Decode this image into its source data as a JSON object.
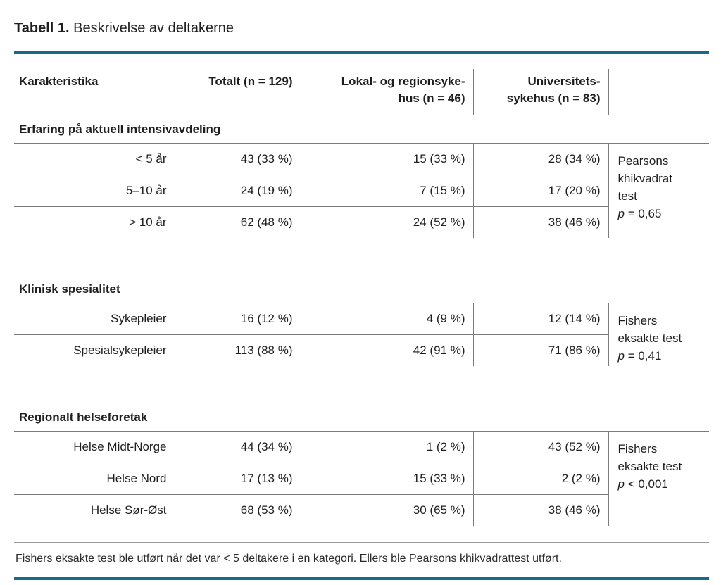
{
  "title": {
    "label": "Tabell 1.",
    "text": " Beskrivelse av deltakerne"
  },
  "colors": {
    "accent_rule": "#17698f",
    "grid_line": "#7b7b7b",
    "footnote_rule": "#9a9a9a",
    "text": "#1e1e1e"
  },
  "table": {
    "columns": [
      {
        "label": "Karakteristika"
      },
      {
        "label": "Totalt (n = 129)"
      },
      {
        "label": "Lokal- og regionsyke-\nhus (n = 46)"
      },
      {
        "label": "Universitets-\nsykehus (n = 83)"
      },
      {
        "label": ""
      }
    ],
    "sections": [
      {
        "title": "Erfaring på aktuell intensivavdeling",
        "rows": [
          [
            "< 5 år",
            "43 (33 %)",
            "15 (33 %)",
            "28 (34 %)"
          ],
          [
            "5–10 år",
            "24 (19 %)",
            "7 (15 %)",
            "17 (20 %)"
          ],
          [
            "> 10 år",
            "62 (48 %)",
            "24 (52 %)",
            "38 (46 %)"
          ]
        ],
        "stat": {
          "method": "Pearsons\nkhikvadrat\ntest",
          "p_symbol": "p",
          "p_value": " = 0,65"
        }
      },
      {
        "title": "Klinisk spesialitet",
        "rows": [
          [
            "Sykepleier",
            "16 (12 %)",
            "4 (9 %)",
            "12 (14 %)"
          ],
          [
            "Spesialsykepleier",
            "113 (88 %)",
            "42 (91 %)",
            "71 (86 %)"
          ]
        ],
        "stat": {
          "method": "Fishers\neksakte test",
          "p_symbol": "p",
          "p_value": " = 0,41"
        }
      },
      {
        "title": "Regionalt helseforetak",
        "rows": [
          [
            "Helse Midt-Norge",
            "44 (34 %)",
            "1 (2 %)",
            "43 (52 %)"
          ],
          [
            "Helse Nord",
            "17 (13 %)",
            "15 (33 %)",
            "2 (2 %)"
          ],
          [
            "Helse Sør-Øst",
            "68 (53 %)",
            "30 (65 %)",
            "38 (46 %)"
          ]
        ],
        "stat": {
          "method": "Fishers\neksakte test",
          "p_symbol": "p",
          "p_value": " < 0,001"
        }
      }
    ]
  },
  "footnote": "Fishers eksakte test ble utført når det var < 5 deltakere i en kategori. Ellers ble Pearsons khikvadrattest utført."
}
